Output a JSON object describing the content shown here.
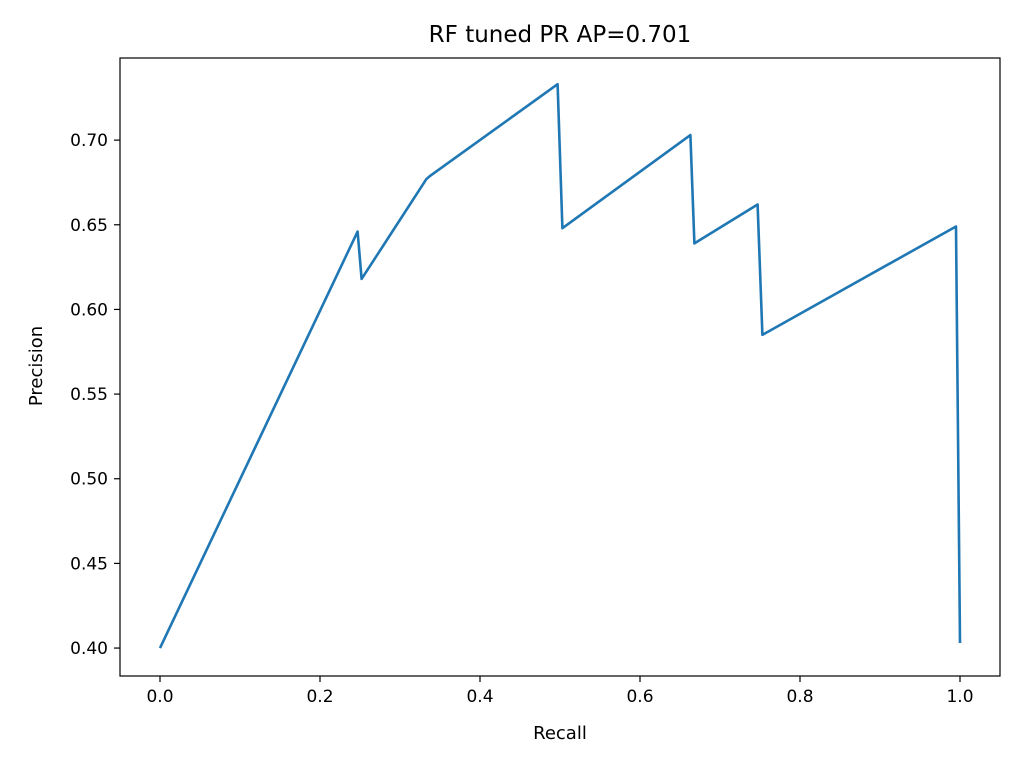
{
  "chart_data": {
    "type": "line",
    "title": "RF tuned PR AP=0.701",
    "xlabel": "Recall",
    "ylabel": "Precision",
    "xlim": [
      -0.05,
      1.05
    ],
    "ylim": [
      0.3835,
      0.7485
    ],
    "grid": false,
    "legend": "none",
    "xticks": [
      0.0,
      0.2,
      0.4,
      0.6,
      0.8,
      1.0
    ],
    "xtick_labels": [
      "0.0",
      "0.2",
      "0.4",
      "0.6",
      "0.8",
      "1.0"
    ],
    "yticks": [
      0.4,
      0.45,
      0.5,
      0.55,
      0.6,
      0.65,
      0.7
    ],
    "ytick_labels": [
      "0.40",
      "0.45",
      "0.50",
      "0.55",
      "0.60",
      "0.65",
      "0.70"
    ],
    "series": [
      {
        "color": "#1f77b4",
        "x": [
          0.0,
          0.247,
          0.252,
          0.333,
          0.338,
          0.497,
          0.503,
          0.663,
          0.668,
          0.747,
          0.753,
          0.995,
          1.0
        ],
        "y": [
          0.4,
          0.646,
          0.618,
          0.677,
          0.679,
          0.733,
          0.648,
          0.703,
          0.639,
          0.662,
          0.585,
          0.649,
          0.403
        ]
      }
    ]
  }
}
